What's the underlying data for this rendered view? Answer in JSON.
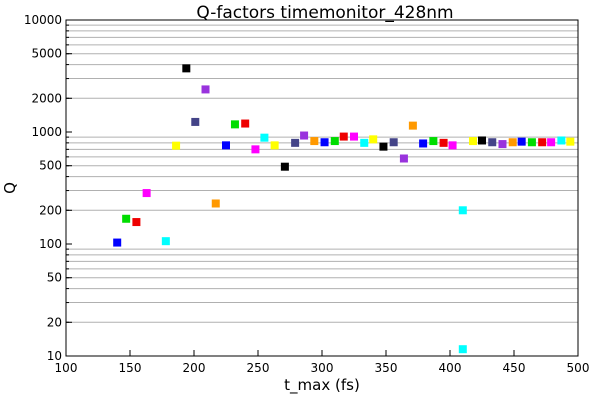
{
  "chart_data": {
    "type": "scatter",
    "title": "Q-factors timemonitor_428nm",
    "xlabel": "t_max (fs)",
    "ylabel": "Q",
    "xlim": [
      100,
      500
    ],
    "ylim": [
      10,
      10000
    ],
    "yscale": "log",
    "grid": true,
    "x_ticks": [
      100,
      150,
      200,
      250,
      300,
      350,
      400,
      450,
      500
    ],
    "x_tick_labels": [
      "100",
      "150",
      "200",
      "250",
      "300",
      "350",
      "400",
      "450",
      "500"
    ],
    "y_ticks": [
      10,
      20,
      50,
      100,
      200,
      500,
      1000,
      2000,
      5000,
      10000
    ],
    "y_tick_labels": [
      "10",
      "20",
      "50",
      "100",
      "200",
      "500",
      "1000",
      "2000",
      "5000",
      "10000"
    ],
    "points": [
      {
        "x": 140,
        "y": 103,
        "color": "#0000ff"
      },
      {
        "x": 147,
        "y": 168,
        "color": "#00dd00"
      },
      {
        "x": 155,
        "y": 157,
        "color": "#ee0000"
      },
      {
        "x": 163,
        "y": 285,
        "color": "#ff00ff"
      },
      {
        "x": 178,
        "y": 106,
        "color": "#00ffff"
      },
      {
        "x": 186,
        "y": 755,
        "color": "#ffff00"
      },
      {
        "x": 194,
        "y": 3700,
        "color": "#000000"
      },
      {
        "x": 201,
        "y": 1230,
        "color": "#444488"
      },
      {
        "x": 209,
        "y": 2400,
        "color": "#9933dd"
      },
      {
        "x": 217,
        "y": 230,
        "color": "#ff9900"
      },
      {
        "x": 225,
        "y": 760,
        "color": "#0000ff"
      },
      {
        "x": 232,
        "y": 1170,
        "color": "#00dd00"
      },
      {
        "x": 240,
        "y": 1190,
        "color": "#ee0000"
      },
      {
        "x": 248,
        "y": 700,
        "color": "#ff00ff"
      },
      {
        "x": 255,
        "y": 890,
        "color": "#00ffff"
      },
      {
        "x": 263,
        "y": 760,
        "color": "#ffff00"
      },
      {
        "x": 271,
        "y": 490,
        "color": "#000000"
      },
      {
        "x": 279,
        "y": 800,
        "color": "#444488"
      },
      {
        "x": 286,
        "y": 930,
        "color": "#9933dd"
      },
      {
        "x": 294,
        "y": 830,
        "color": "#ff9900"
      },
      {
        "x": 302,
        "y": 810,
        "color": "#0000ff"
      },
      {
        "x": 310,
        "y": 830,
        "color": "#00dd00"
      },
      {
        "x": 317,
        "y": 910,
        "color": "#ee0000"
      },
      {
        "x": 325,
        "y": 910,
        "color": "#ff00ff"
      },
      {
        "x": 333,
        "y": 800,
        "color": "#00ffff"
      },
      {
        "x": 340,
        "y": 860,
        "color": "#ffff00"
      },
      {
        "x": 348,
        "y": 740,
        "color": "#000000"
      },
      {
        "x": 356,
        "y": 810,
        "color": "#444488"
      },
      {
        "x": 364,
        "y": 580,
        "color": "#9933dd"
      },
      {
        "x": 371,
        "y": 1140,
        "color": "#ff9900"
      },
      {
        "x": 379,
        "y": 790,
        "color": "#0000ff"
      },
      {
        "x": 387,
        "y": 830,
        "color": "#00dd00"
      },
      {
        "x": 395,
        "y": 800,
        "color": "#ee0000"
      },
      {
        "x": 402,
        "y": 760,
        "color": "#ff00ff"
      },
      {
        "x": 410,
        "y": 11.5,
        "color": "#00ffff"
      },
      {
        "x": 410,
        "y": 200,
        "color": "#00ffff"
      },
      {
        "x": 418,
        "y": 830,
        "color": "#ffff00"
      },
      {
        "x": 425,
        "y": 840,
        "color": "#000000"
      },
      {
        "x": 433,
        "y": 810,
        "color": "#444488"
      },
      {
        "x": 441,
        "y": 780,
        "color": "#9933dd"
      },
      {
        "x": 449,
        "y": 810,
        "color": "#ff9900"
      },
      {
        "x": 456,
        "y": 820,
        "color": "#0000ff"
      },
      {
        "x": 464,
        "y": 810,
        "color": "#00dd00"
      },
      {
        "x": 472,
        "y": 810,
        "color": "#ee0000"
      },
      {
        "x": 479,
        "y": 810,
        "color": "#ff00ff"
      },
      {
        "x": 487,
        "y": 840,
        "color": "#00ffff"
      },
      {
        "x": 494,
        "y": 820,
        "color": "#ffff00"
      }
    ]
  }
}
